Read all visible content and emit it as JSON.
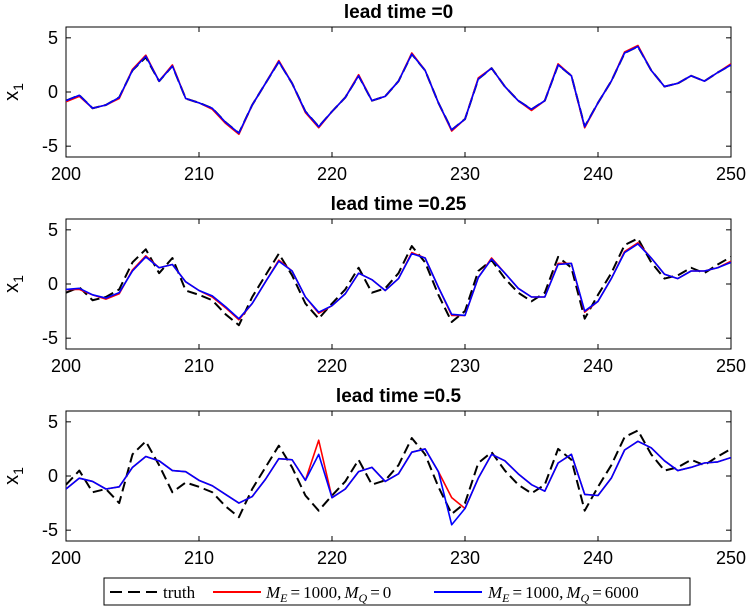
{
  "chart_data": [
    {
      "type": "line",
      "title": "lead time =0",
      "xlabel": "",
      "ylabel": "x",
      "ylabel_subscript": "1",
      "xlim": [
        200,
        250
      ],
      "ylim": [
        -6,
        6
      ],
      "xticks": [
        200,
        210,
        220,
        230,
        240,
        250
      ],
      "yticks": [
        5,
        0,
        -5
      ],
      "xtick_labels": [
        "200",
        "210",
        "220",
        "230",
        "240",
        "250"
      ],
      "ytick_labels": [
        "5",
        "0",
        "-5"
      ],
      "x": [
        200,
        201,
        202,
        203,
        204,
        205,
        206,
        207,
        208,
        209,
        210,
        211,
        212,
        213,
        214,
        215,
        216,
        217,
        218,
        219,
        220,
        221,
        222,
        223,
        224,
        225,
        226,
        227,
        228,
        229,
        230,
        231,
        232,
        233,
        234,
        235,
        236,
        237,
        238,
        239,
        240,
        241,
        242,
        243,
        244,
        245,
        246,
        247,
        248,
        249,
        250
      ],
      "series": [
        {
          "name": "truth",
          "style": "dashed",
          "color": "#000000",
          "values": [
            -0.8,
            -0.3,
            -1.5,
            -1.2,
            -0.5,
            2.0,
            3.2,
            1.0,
            2.4,
            -0.6,
            -1.0,
            -1.5,
            -2.8,
            -3.8,
            -1.2,
            0.8,
            2.8,
            0.8,
            -1.8,
            -3.2,
            -1.8,
            -0.5,
            1.5,
            -0.8,
            -0.4,
            1.0,
            3.5,
            2.0,
            -1.0,
            -3.5,
            -2.5,
            1.2,
            2.2,
            0.5,
            -0.8,
            -1.6,
            -0.8,
            2.5,
            1.5,
            -3.2,
            -1.0,
            1.0,
            3.6,
            4.2,
            2.0,
            0.5,
            0.8,
            1.5,
            1.0,
            1.8,
            2.5
          ]
        },
        {
          "name": "M_E = 1000, M_Q = 0",
          "style": "solid",
          "color": "#ff0000",
          "values": [
            -0.9,
            -0.4,
            -1.5,
            -1.2,
            -0.6,
            2.1,
            3.4,
            1.0,
            2.5,
            -0.6,
            -1.0,
            -1.6,
            -2.9,
            -3.9,
            -1.2,
            0.8,
            2.9,
            0.8,
            -1.9,
            -3.3,
            -1.8,
            -0.5,
            1.6,
            -0.8,
            -0.4,
            1.0,
            3.6,
            2.0,
            -1.0,
            -3.6,
            -2.5,
            1.3,
            2.2,
            0.5,
            -0.8,
            -1.7,
            -0.8,
            2.6,
            1.5,
            -3.3,
            -1.0,
            1.0,
            3.7,
            4.3,
            2.0,
            0.5,
            0.8,
            1.5,
            1.0,
            1.8,
            2.6
          ]
        },
        {
          "name": "M_E = 1000, M_Q = 6000",
          "style": "solid",
          "color": "#0000ff",
          "values": [
            -0.8,
            -0.3,
            -1.5,
            -1.2,
            -0.5,
            2.0,
            3.3,
            1.0,
            2.4,
            -0.6,
            -1.0,
            -1.5,
            -2.8,
            -3.8,
            -1.2,
            0.8,
            2.8,
            0.8,
            -1.8,
            -3.2,
            -1.8,
            -0.5,
            1.5,
            -0.8,
            -0.4,
            1.0,
            3.5,
            2.0,
            -1.0,
            -3.5,
            -2.5,
            1.2,
            2.2,
            0.5,
            -0.8,
            -1.6,
            -0.8,
            2.5,
            1.5,
            -3.2,
            -1.0,
            1.0,
            3.6,
            4.2,
            2.0,
            0.5,
            0.8,
            1.5,
            1.0,
            1.8,
            2.5
          ]
        }
      ]
    },
    {
      "type": "line",
      "title": "lead time =0.25",
      "xlabel": "",
      "ylabel": "x",
      "ylabel_subscript": "1",
      "xlim": [
        200,
        250
      ],
      "ylim": [
        -6,
        6
      ],
      "xticks": [
        200,
        210,
        220,
        230,
        240,
        250
      ],
      "yticks": [
        5,
        0,
        -5
      ],
      "xtick_labels": [
        "200",
        "210",
        "220",
        "230",
        "240",
        "250"
      ],
      "ytick_labels": [
        "5",
        "0",
        "-5"
      ],
      "x": [
        200,
        201,
        202,
        203,
        204,
        205,
        206,
        207,
        208,
        209,
        210,
        211,
        212,
        213,
        214,
        215,
        216,
        217,
        218,
        219,
        220,
        221,
        222,
        223,
        224,
        225,
        226,
        227,
        228,
        229,
        230,
        231,
        232,
        233,
        234,
        235,
        236,
        237,
        238,
        239,
        240,
        241,
        242,
        243,
        244,
        245,
        246,
        247,
        248,
        249,
        250
      ],
      "series": [
        {
          "name": "truth",
          "style": "dashed",
          "color": "#000000",
          "values": [
            -0.8,
            -0.3,
            -1.5,
            -1.2,
            -0.5,
            2.0,
            3.2,
            1.0,
            2.4,
            -0.6,
            -1.0,
            -1.5,
            -2.8,
            -3.8,
            -1.2,
            0.8,
            2.8,
            0.8,
            -1.8,
            -3.2,
            -1.8,
            -0.5,
            1.5,
            -0.8,
            -0.4,
            1.0,
            3.5,
            2.0,
            -1.0,
            -3.5,
            -2.5,
            1.2,
            2.2,
            0.5,
            -0.8,
            -1.6,
            -0.8,
            2.5,
            1.5,
            -3.2,
            -1.0,
            1.0,
            3.6,
            4.2,
            2.0,
            0.5,
            0.8,
            1.5,
            1.0,
            1.8,
            2.5
          ]
        },
        {
          "name": "M_E = 1000, M_Q = 0",
          "style": "solid",
          "color": "#ff0000",
          "values": [
            -0.5,
            -0.5,
            -1.0,
            -1.4,
            -0.9,
            1.3,
            2.6,
            1.5,
            1.8,
            0.2,
            -0.6,
            -1.2,
            -2.2,
            -3.3,
            -1.8,
            0.2,
            2.2,
            1.2,
            -1.2,
            -2.7,
            -2.0,
            -0.9,
            1.0,
            0.4,
            -0.6,
            0.5,
            2.9,
            2.4,
            -0.3,
            -2.9,
            -2.9,
            0.6,
            2.4,
            1.0,
            -0.4,
            -1.2,
            -1.2,
            1.9,
            1.9,
            -2.6,
            -1.6,
            0.5,
            3.0,
            3.8,
            2.4,
            0.9,
            0.5,
            1.2,
            1.2,
            1.5,
            2.1
          ]
        },
        {
          "name": "M_E = 1000, M_Q = 6000",
          "style": "solid",
          "color": "#0000ff",
          "values": [
            -0.5,
            -0.4,
            -1.0,
            -1.3,
            -0.8,
            1.2,
            2.5,
            1.5,
            1.8,
            0.2,
            -0.6,
            -1.1,
            -2.1,
            -3.2,
            -1.8,
            0.2,
            2.1,
            1.2,
            -1.2,
            -2.6,
            -2.0,
            -0.9,
            1.0,
            0.4,
            -0.6,
            0.5,
            2.8,
            2.4,
            -0.3,
            -2.8,
            -2.9,
            0.6,
            2.3,
            1.0,
            -0.4,
            -1.2,
            -1.2,
            1.8,
            1.9,
            -2.5,
            -1.6,
            0.5,
            2.9,
            3.7,
            2.4,
            0.9,
            0.5,
            1.2,
            1.2,
            1.5,
            2.0
          ]
        }
      ]
    },
    {
      "type": "line",
      "title": "lead time =0.5",
      "xlabel": "",
      "ylabel": "x",
      "ylabel_subscript": "1",
      "xlim": [
        200,
        250
      ],
      "ylim": [
        -6,
        6
      ],
      "xticks": [
        200,
        210,
        220,
        230,
        240,
        250
      ],
      "yticks": [
        5,
        0,
        -5
      ],
      "xtick_labels": [
        "200",
        "210",
        "220",
        "230",
        "240",
        "250"
      ],
      "ytick_labels": [
        "5",
        "0",
        "-5"
      ],
      "x": [
        200,
        201,
        202,
        203,
        204,
        205,
        206,
        207,
        208,
        209,
        210,
        211,
        212,
        213,
        214,
        215,
        216,
        217,
        218,
        219,
        220,
        221,
        222,
        223,
        224,
        225,
        226,
        227,
        228,
        229,
        230,
        231,
        232,
        233,
        234,
        235,
        236,
        237,
        238,
        239,
        240,
        241,
        242,
        243,
        244,
        245,
        246,
        247,
        248,
        249,
        250
      ],
      "series": [
        {
          "name": "truth",
          "style": "dashed",
          "color": "#000000",
          "values": [
            -0.8,
            0.5,
            -1.5,
            -1.2,
            -2.5,
            2.0,
            3.2,
            1.0,
            -1.5,
            -0.6,
            -1.0,
            -1.5,
            -2.8,
            -3.8,
            -1.2,
            0.8,
            2.8,
            0.8,
            -1.8,
            -3.2,
            -1.8,
            -0.5,
            1.5,
            -0.8,
            -0.4,
            1.0,
            3.5,
            2.0,
            -1.0,
            -3.5,
            -2.5,
            1.2,
            2.2,
            0.5,
            -0.8,
            -1.6,
            -0.8,
            2.5,
            1.5,
            -3.2,
            -1.0,
            1.0,
            3.6,
            4.2,
            2.0,
            0.5,
            0.8,
            1.5,
            1.0,
            1.8,
            2.5
          ]
        },
        {
          "name": "M_E = 1000, M_Q = 0",
          "style": "solid",
          "color": "#ff0000",
          "values": [
            -1.2,
            -0.2,
            -0.5,
            -1.2,
            -1.0,
            0.8,
            1.8,
            1.4,
            0.5,
            0.4,
            -0.4,
            -0.9,
            -1.7,
            -2.5,
            -1.9,
            -0.3,
            1.6,
            1.5,
            -0.4,
            3.3,
            -2.0,
            -1.2,
            0.4,
            0.8,
            -0.5,
            0.2,
            2.2,
            2.5,
            0.4,
            -2.0,
            -3.0,
            -0.2,
            2.0,
            1.4,
            0.2,
            -0.8,
            -1.4,
            1.2,
            2.0,
            -1.7,
            -1.8,
            -0.2,
            2.4,
            3.2,
            2.6,
            1.4,
            0.5,
            0.8,
            1.2,
            1.3,
            1.7
          ]
        },
        {
          "name": "M_E = 1000, M_Q = 6000",
          "style": "solid",
          "color": "#0000ff",
          "values": [
            -1.2,
            -0.2,
            -0.5,
            -1.2,
            -1.0,
            0.8,
            1.8,
            1.4,
            0.5,
            0.4,
            -0.4,
            -0.9,
            -1.7,
            -2.5,
            -1.9,
            -0.3,
            1.6,
            1.5,
            -0.4,
            2.0,
            -2.0,
            -1.2,
            0.4,
            0.8,
            -0.5,
            0.2,
            2.2,
            2.5,
            0.4,
            -4.5,
            -3.0,
            -0.2,
            2.0,
            1.4,
            0.2,
            -0.8,
            -1.4,
            1.2,
            2.0,
            -1.7,
            -1.8,
            -0.2,
            2.4,
            3.2,
            2.6,
            1.4,
            0.5,
            0.8,
            1.2,
            1.3,
            1.7
          ]
        }
      ]
    }
  ],
  "legend": {
    "placement": "bottom-center",
    "entries": [
      {
        "label": "truth",
        "style": "dashed",
        "color": "#000000"
      },
      {
        "label": "M_E = 1000, M_Q = 0",
        "style": "solid",
        "color": "#ff0000"
      },
      {
        "label": "M_E = 1000, M_Q = 6000",
        "style": "solid",
        "color": "#0000ff"
      }
    ],
    "math": {
      "m": "M",
      "sub_e": "E",
      "sub_q": "Q",
      "eq": "=",
      "v1000": "1000,",
      "v0": "0",
      "v6000": "6000"
    }
  }
}
